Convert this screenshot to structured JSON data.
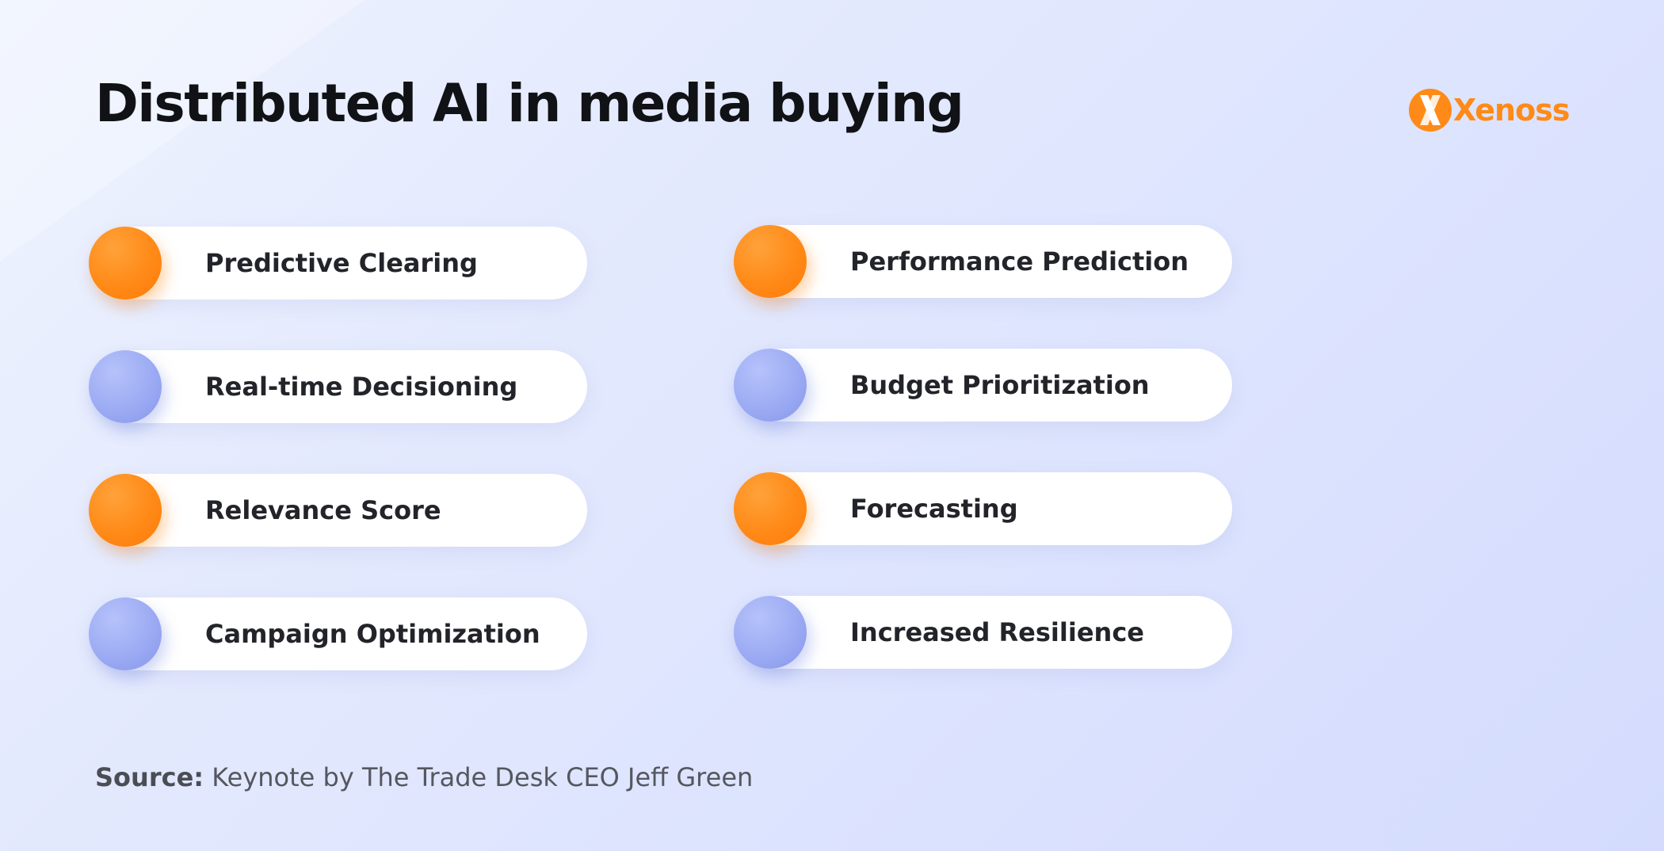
{
  "title": "Distributed AI in media buying",
  "logo": {
    "name": "Xenoss",
    "color": "#ff8a17"
  },
  "colors": {
    "orange": "#ff8a17",
    "blue": "#9cabf3"
  },
  "left_column": [
    {
      "label": "Predictive Clearing",
      "dot": "orange"
    },
    {
      "label": "Real-time Decisioning",
      "dot": "blue"
    },
    {
      "label": "Relevance Score",
      "dot": "orange"
    },
    {
      "label": "Campaign Optimization",
      "dot": "blue"
    }
  ],
  "right_column": [
    {
      "label": "Performance Prediction",
      "dot": "orange"
    },
    {
      "label": "Budget Prioritization",
      "dot": "blue"
    },
    {
      "label": "Forecasting",
      "dot": "orange"
    },
    {
      "label": "Increased Resilience",
      "dot": "blue"
    }
  ],
  "source": {
    "label": "Source:",
    "text": "Keynote by The Trade Desk CEO Jeff Green"
  }
}
